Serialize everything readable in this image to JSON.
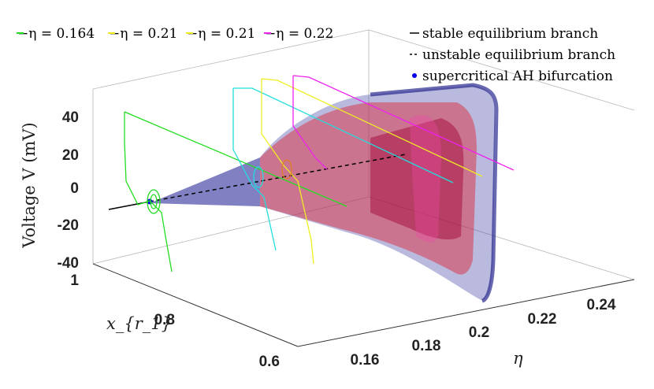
{
  "chart_data": {
    "type": "3d-line-surface",
    "zlabel": "Voltage V (mV)",
    "ylabel": "x_{r_1}",
    "xlabel": "η",
    "xticks": [
      "0.16",
      "0.18",
      "0.2",
      "0.22",
      "0.24"
    ],
    "yticks": [
      "1",
      "0.8",
      "0.6"
    ],
    "zticks": [
      "40",
      "20",
      "0",
      "-20",
      "-40"
    ],
    "xlim": [
      0.15,
      0.25
    ],
    "ylim": [
      0.55,
      1.0
    ],
    "zlim": [
      -45,
      50
    ],
    "grid": false,
    "trajectory_legend": {
      "placement": "top-left",
      "entries": [
        {
          "label": "−η = 0.164",
          "color": "#22dd22",
          "eta": 0.164
        },
        {
          "label": "−η = 0.21",
          "color": "#eeee22",
          "eta": 0.21
        },
        {
          "label": "−η = 0.21",
          "color": "#eeee22",
          "eta": 0.21
        },
        {
          "label": "−η = 0.22",
          "color": "#ee22ee",
          "eta": 0.22
        }
      ]
    },
    "branch_legend": {
      "placement": "top-right",
      "entries": [
        {
          "label": "stable equilibrium branch",
          "style": "solid",
          "color": "#000000"
        },
        {
          "label": "unstable equilibrium branch",
          "style": "dashed",
          "color": "#000000"
        },
        {
          "label": "supercritical AH bifurcation",
          "style": "dot",
          "color": "#0000ee"
        }
      ]
    },
    "series": [
      {
        "name": "η = 0.164",
        "color": "#22dd22",
        "eta": 0.164
      },
      {
        "name": "η = 0.21",
        "color": "#eeee22",
        "eta": 0.21
      },
      {
        "name": "η = 0.22",
        "color": "#ee22ee",
        "eta": 0.22
      }
    ],
    "extra_trajectory": {
      "color": "#22dddd"
    },
    "equilibrium": {
      "hopf_eta": 0.164
    },
    "surfaces": [
      {
        "role": "periodic-orbit envelope",
        "color": "#3a3aa0"
      },
      {
        "role": "periodic-orbit envelope",
        "color": "#e02030"
      }
    ]
  }
}
